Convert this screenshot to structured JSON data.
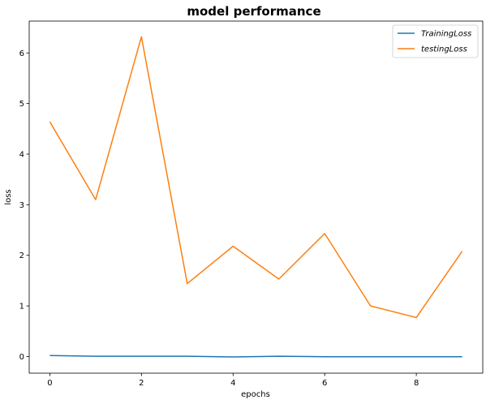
{
  "chart_data": {
    "type": "line",
    "title": "model performance",
    "xlabel": "epochs",
    "ylabel": "loss",
    "x": [
      0,
      1,
      2,
      3,
      4,
      5,
      6,
      7,
      8,
      9
    ],
    "xlim": [
      -0.45,
      9.45
    ],
    "ylim": [
      -0.33,
      6.63
    ],
    "xticks": [
      "0",
      "2",
      "4",
      "6",
      "8"
    ],
    "yticks": [
      "0",
      "1",
      "2",
      "3",
      "4",
      "5",
      "6"
    ],
    "grid": false,
    "legend_position": "top-right",
    "series": [
      {
        "name": "TrainingLoss",
        "color": "#1f77b4",
        "values": [
          0.02,
          0.005,
          0.005,
          0.005,
          -0.01,
          0.005,
          -0.005,
          -0.005,
          -0.005,
          -0.005
        ]
      },
      {
        "name": "testingLoss",
        "color": "#ff7f0e",
        "values": [
          4.64,
          3.1,
          6.32,
          1.44,
          2.18,
          1.53,
          2.43,
          1.0,
          0.77,
          2.08
        ]
      }
    ]
  }
}
